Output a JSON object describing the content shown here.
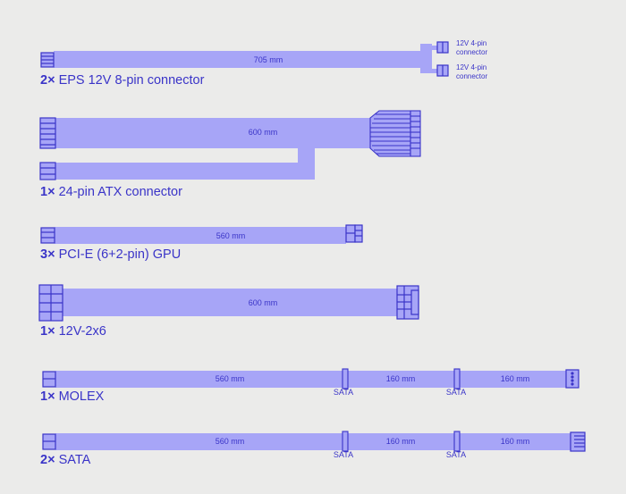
{
  "colors": {
    "background": "#ebebea",
    "cable": "#a7a5f7",
    "stroke": "#3a34c8",
    "text": "#3a34c8"
  },
  "cables": [
    {
      "id": "eps",
      "quantity": "2×",
      "name": "EPS 12V 8-pin connector",
      "lengths": [
        "705 mm"
      ],
      "end_labels": [
        "12V 4-pin connector",
        "12V 4-pin connector"
      ]
    },
    {
      "id": "atx",
      "quantity": "1×",
      "name": "24-pin ATX connector",
      "lengths": [
        "600 mm"
      ]
    },
    {
      "id": "pcie",
      "quantity": "3×",
      "name": "PCI-E (6+2-pin) GPU",
      "lengths": [
        "560 mm"
      ]
    },
    {
      "id": "hpwr",
      "quantity": "1×",
      "name": "12V-2x6",
      "lengths": [
        "600 mm"
      ]
    },
    {
      "id": "molex",
      "quantity": "1×",
      "name": "MOLEX",
      "lengths": [
        "560 mm",
        "160 mm",
        "160 mm"
      ],
      "sata_labels": [
        "SATA",
        "SATA"
      ]
    },
    {
      "id": "sata",
      "quantity": "2×",
      "name": "SATA",
      "lengths": [
        "560 mm",
        "160 mm",
        "160 mm"
      ],
      "sata_labels": [
        "SATA",
        "SATA"
      ]
    }
  ]
}
